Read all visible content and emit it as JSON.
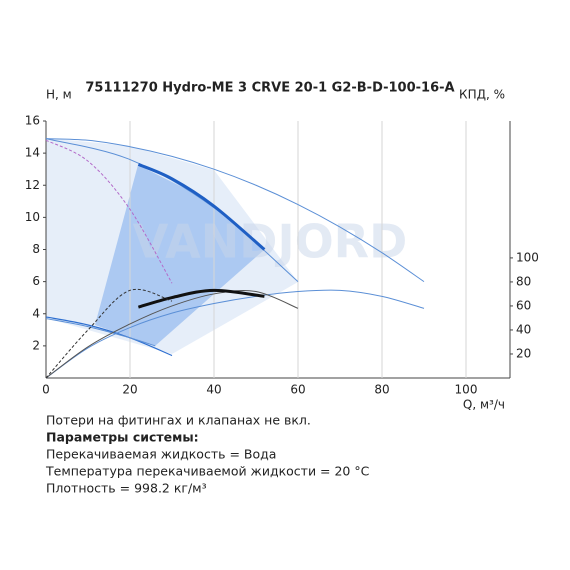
{
  "chart_data": {
    "type": "line",
    "title": "75111270 Hydro-ME 3 CRVE 20-1 G2-B-D-100-16-A",
    "y_label": "H, м",
    "y2_label": "КПД, %",
    "x_label": "Q, м³/ч",
    "watermark": "VANDJORD",
    "xlim": [
      0,
      110
    ],
    "ylim": [
      0,
      16
    ],
    "y2lim": [
      0,
      214
    ],
    "xticks": [
      0,
      20,
      40,
      60,
      80,
      100
    ],
    "yticks": [
      2,
      4,
      6,
      8,
      10,
      12,
      14,
      16
    ],
    "y2ticks": [
      20,
      40,
      60,
      80,
      100
    ],
    "grid": "x",
    "series": [
      {
        "color": "#5b8fd6",
        "width": 1,
        "x": [
          0,
          10,
          20,
          30,
          40,
          50,
          60,
          70,
          80,
          90
        ],
        "values": [
          14.9,
          14.8,
          14.4,
          13.8,
          13.0,
          12.0,
          10.8,
          9.4,
          7.8,
          6.0
        ]
      },
      {
        "color": "#5b8fd6",
        "width": 1,
        "x": [
          0,
          20,
          40,
          60
        ],
        "values": [
          14.9,
          13.6,
          10.6,
          6.0
        ]
      },
      {
        "color": "#1f5fc4",
        "width": 3,
        "x": [
          22,
          30,
          40,
          52
        ],
        "values": [
          13.3,
          12.4,
          10.7,
          8.0
        ]
      },
      {
        "color": "#2e6fd0",
        "width": 1.2,
        "x": [
          0,
          10,
          20,
          30
        ],
        "values": [
          3.8,
          3.3,
          2.5,
          1.4
        ]
      },
      {
        "color": "#5b8fd6",
        "width": 1,
        "x": [
          0,
          10,
          20,
          26
        ],
        "values": [
          3.7,
          3.2,
          2.5,
          2.0
        ]
      },
      {
        "color": "#b36bc9",
        "width": 1,
        "dash": true,
        "x": [
          0,
          10,
          20,
          30
        ],
        "values": [
          14.8,
          13.5,
          10.5,
          5.9
        ]
      },
      {
        "color": "#5b8fd6",
        "width": 1,
        "axis": "y2",
        "x": [
          0,
          10,
          20,
          30,
          40,
          50,
          60,
          70,
          80,
          90
        ],
        "values": [
          0,
          25,
          42,
          54,
          62,
          68,
          72,
          73,
          68,
          58
        ]
      },
      {
        "color": "#555555",
        "width": 1,
        "axis": "y2",
        "x": [
          0,
          10,
          20,
          30,
          40,
          50,
          60
        ],
        "values": [
          0,
          26,
          45,
          60,
          70,
          72,
          58
        ]
      },
      {
        "color": "#111111",
        "width": 3,
        "axis": "y2",
        "x": [
          22,
          30,
          40,
          52
        ],
        "values": [
          59,
          67,
          73,
          68
        ]
      },
      {
        "color": "#333333",
        "width": 1,
        "dash": true,
        "axis": "y2",
        "x": [
          0,
          10,
          20,
          30
        ],
        "values": [
          0,
          40,
          73,
          64
        ]
      }
    ]
  },
  "notes": {
    "line1": "Потери на фитингах и клапанах не вкл.",
    "heading": "Параметры системы:",
    "line2": "Перекачиваемая жидкость = Вода",
    "line3": "Температура перекачиваемой жидкости = 20 °C",
    "line4": "Плотность = 998.2 кг/м³"
  }
}
